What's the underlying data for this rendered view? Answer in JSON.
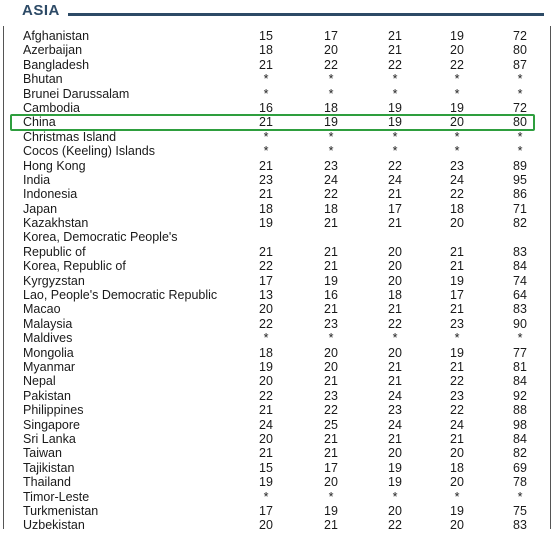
{
  "section": {
    "title": "ASIA"
  },
  "colors": {
    "title": "#2d4a66",
    "highlight": "#2e9e3e"
  },
  "highlighted_row": "China",
  "rows": [
    {
      "name": "Afghanistan",
      "values": [
        "15",
        "17",
        "21",
        "19",
        "72"
      ]
    },
    {
      "name": "Azerbaijan",
      "values": [
        "18",
        "20",
        "21",
        "20",
        "80"
      ]
    },
    {
      "name": "Bangladesh",
      "values": [
        "21",
        "22",
        "22",
        "22",
        "87"
      ]
    },
    {
      "name": "Bhutan",
      "values": [
        "*",
        "*",
        "*",
        "*",
        "*"
      ]
    },
    {
      "name": "Brunei Darussalam",
      "values": [
        "*",
        "*",
        "*",
        "*",
        "*"
      ]
    },
    {
      "name": "Cambodia",
      "values": [
        "16",
        "18",
        "19",
        "19",
        "72"
      ]
    },
    {
      "name": "China",
      "values": [
        "21",
        "19",
        "19",
        "20",
        "80"
      ]
    },
    {
      "name": "Christmas Island",
      "values": [
        "*",
        "*",
        "*",
        "*",
        "*"
      ]
    },
    {
      "name": "Cocos (Keeling) Islands",
      "values": [
        "*",
        "*",
        "*",
        "*",
        "*"
      ]
    },
    {
      "name": "Hong Kong",
      "values": [
        "21",
        "23",
        "22",
        "23",
        "89"
      ]
    },
    {
      "name": "India",
      "values": [
        "23",
        "24",
        "24",
        "24",
        "95"
      ]
    },
    {
      "name": "Indonesia",
      "values": [
        "21",
        "22",
        "21",
        "22",
        "86"
      ]
    },
    {
      "name": "Japan",
      "values": [
        "18",
        "18",
        "17",
        "18",
        "71"
      ]
    },
    {
      "name": "Kazakhstan",
      "values": [
        "19",
        "21",
        "21",
        "20",
        "82"
      ]
    },
    {
      "name": "Korea, Democratic People's",
      "values": [
        "",
        "",
        "",
        "",
        ""
      ]
    },
    {
      "name": "Republic of",
      "values": [
        "21",
        "21",
        "20",
        "21",
        "83"
      ]
    },
    {
      "name": "Korea, Republic of",
      "values": [
        "22",
        "21",
        "20",
        "21",
        "84"
      ]
    },
    {
      "name": "Kyrgyzstan",
      "values": [
        "17",
        "19",
        "20",
        "19",
        "74"
      ]
    },
    {
      "name": "Lao, People's Democratic Republic",
      "values": [
        "13",
        "16",
        "18",
        "17",
        "64"
      ]
    },
    {
      "name": "Macao",
      "values": [
        "20",
        "21",
        "21",
        "21",
        "83"
      ]
    },
    {
      "name": "Malaysia",
      "values": [
        "22",
        "23",
        "22",
        "23",
        "90"
      ]
    },
    {
      "name": "Maldives",
      "values": [
        "*",
        "*",
        "*",
        "*",
        "*"
      ]
    },
    {
      "name": "Mongolia",
      "values": [
        "18",
        "20",
        "20",
        "19",
        "77"
      ]
    },
    {
      "name": "Myanmar",
      "values": [
        "19",
        "20",
        "21",
        "21",
        "81"
      ]
    },
    {
      "name": "Nepal",
      "values": [
        "20",
        "21",
        "21",
        "22",
        "84"
      ]
    },
    {
      "name": "Pakistan",
      "values": [
        "22",
        "23",
        "24",
        "23",
        "92"
      ]
    },
    {
      "name": "Philippines",
      "values": [
        "21",
        "22",
        "23",
        "22",
        "88"
      ]
    },
    {
      "name": "Singapore",
      "values": [
        "24",
        "25",
        "24",
        "24",
        "98"
      ]
    },
    {
      "name": "Sri Lanka",
      "values": [
        "20",
        "21",
        "21",
        "21",
        "84"
      ]
    },
    {
      "name": "Taiwan",
      "values": [
        "21",
        "21",
        "20",
        "20",
        "82"
      ]
    },
    {
      "name": "Tajikistan",
      "values": [
        "15",
        "17",
        "19",
        "18",
        "69"
      ]
    },
    {
      "name": "Thailand",
      "values": [
        "19",
        "20",
        "19",
        "20",
        "78"
      ]
    },
    {
      "name": "Timor-Leste",
      "values": [
        "*",
        "*",
        "*",
        "*",
        "*"
      ]
    },
    {
      "name": "Turkmenistan",
      "values": [
        "17",
        "19",
        "20",
        "19",
        "75"
      ]
    },
    {
      "name": "Uzbekistan",
      "values": [
        "20",
        "21",
        "22",
        "20",
        "83"
      ]
    }
  ]
}
